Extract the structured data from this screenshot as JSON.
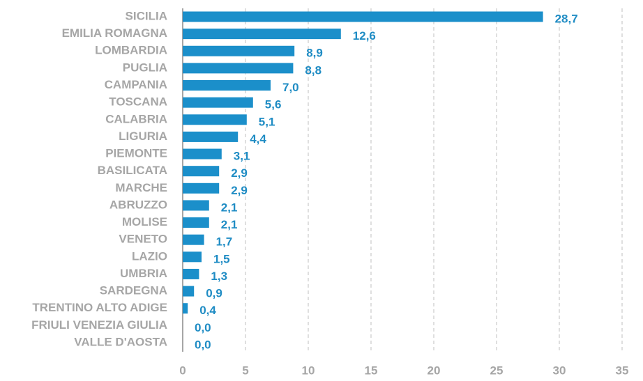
{
  "chart_data": {
    "type": "bar",
    "orientation": "horizontal",
    "categories": [
      "SICILIA",
      "EMILIA ROMAGNA",
      "LOMBARDIA",
      "PUGLIA",
      "CAMPANIA",
      "TOSCANA",
      "CALABRIA",
      "LIGURIA",
      "PIEMONTE",
      "BASILICATA",
      "MARCHE",
      "ABRUZZO",
      "MOLISE",
      "VENETO",
      "LAZIO",
      "UMBRIA",
      "SARDEGNA",
      "TRENTINO ALTO ADIGE",
      "FRIULI VENEZIA GIULIA",
      "VALLE D'AOSTA"
    ],
    "values": [
      28.7,
      12.6,
      8.9,
      8.8,
      7.0,
      5.6,
      5.1,
      4.4,
      3.1,
      2.9,
      2.9,
      2.1,
      2.1,
      1.7,
      1.5,
      1.3,
      0.9,
      0.4,
      0.0,
      0.0
    ],
    "value_labels": [
      "28,7",
      "12,6",
      "8,9",
      "8,8",
      "7,0",
      "5,6",
      "5,1",
      "4,4",
      "3,1",
      "2,9",
      "2,9",
      "2,1",
      "2,1",
      "1,7",
      "1,5",
      "1,3",
      "0,9",
      "0,4",
      "0,0",
      "0,0"
    ],
    "color": "#1b8fca",
    "xlim": [
      0,
      35
    ],
    "xticks": [
      0,
      5,
      10,
      15,
      20,
      25,
      30,
      35
    ],
    "grid": true
  }
}
